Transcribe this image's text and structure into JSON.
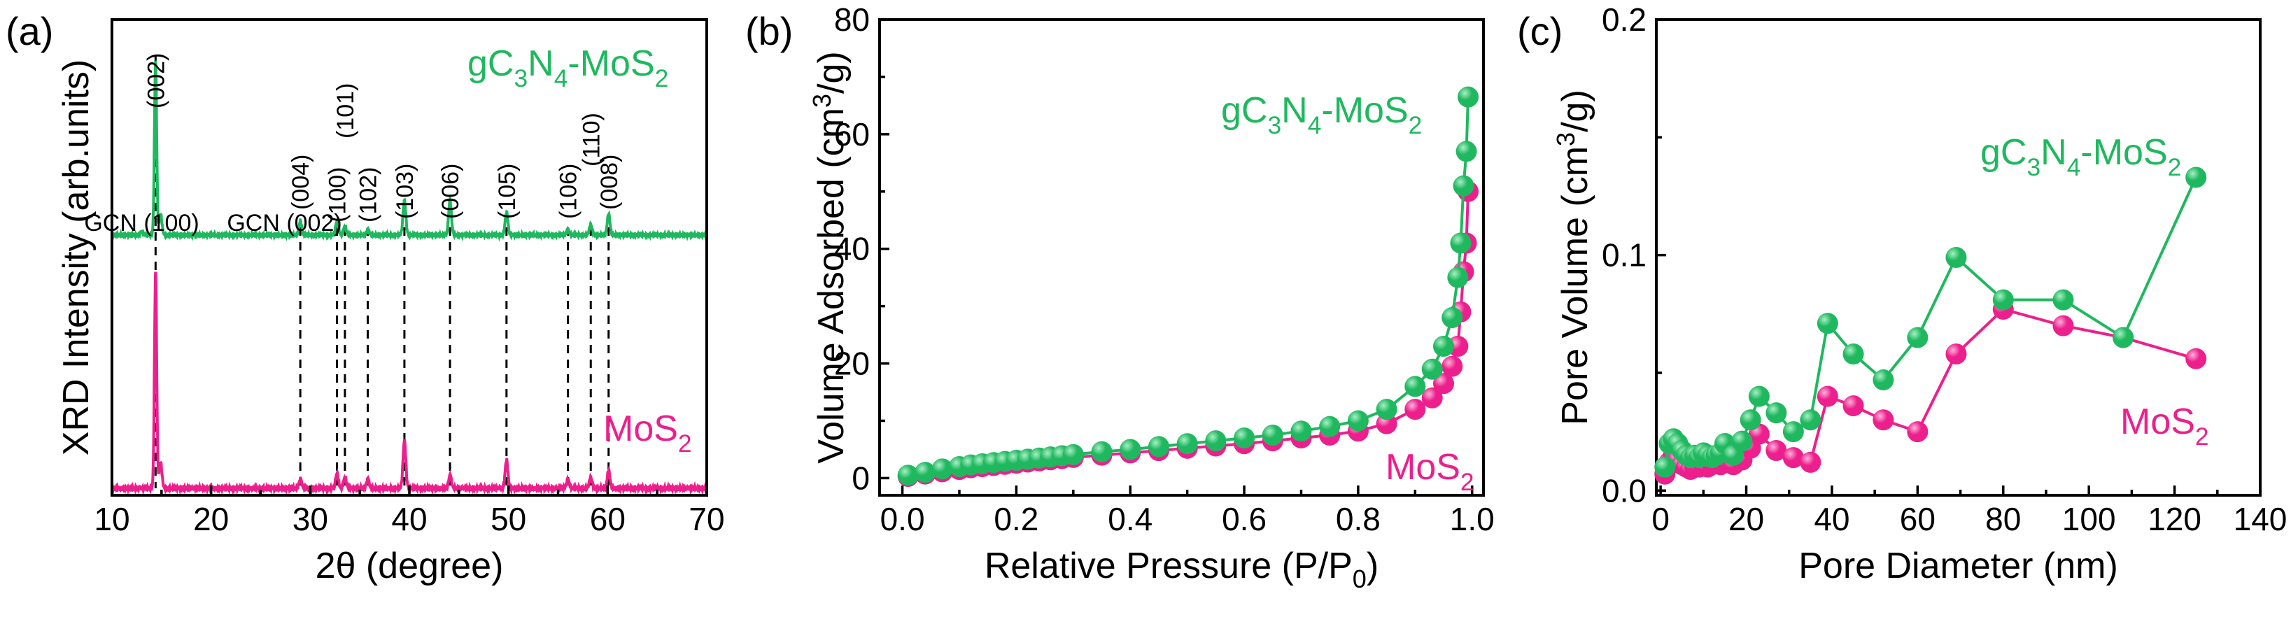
{
  "colors": {
    "green": "#1FB85F",
    "magenta": "#EC1F8C",
    "green_highlight": "#A8EFC4",
    "magenta_highlight": "#FFB3DA"
  },
  "chart_data": [
    {
      "id": "a",
      "type": "line",
      "panel_label": "(a)",
      "xlabel": "2θ (degree)",
      "ylabel": "XRD Intensity (arb.units)",
      "xlim": [
        10,
        70
      ],
      "xticks": [
        10,
        20,
        30,
        40,
        50,
        60,
        70
      ],
      "series": [
        {
          "name": "gC3N4-MoS2",
          "label_main": "gC",
          "label_sub1": "3",
          "label_mid": "N",
          "label_sub2": "4",
          "label_tail": "-MoS",
          "label_sub3": "2",
          "color": "green",
          "peaks": [
            [
              13.0,
              0.02
            ],
            [
              14.4,
              1.0
            ],
            [
              14.9,
              0.12
            ],
            [
              29.0,
              0.08
            ],
            [
              32.7,
              0.08
            ],
            [
              33.5,
              0.05
            ],
            [
              35.8,
              0.03
            ],
            [
              39.5,
              0.2
            ],
            [
              44.1,
              0.2
            ],
            [
              49.8,
              0.13
            ],
            [
              56.0,
              0.03
            ],
            [
              58.3,
              0.06
            ],
            [
              60.1,
              0.12
            ]
          ]
        },
        {
          "name": "MoS2",
          "label_main": "MoS",
          "label_sub1": "2",
          "color": "magenta",
          "peaks": [
            [
              14.4,
              1.0
            ],
            [
              14.9,
              0.12
            ],
            [
              29.0,
              0.04
            ],
            [
              32.7,
              0.07
            ],
            [
              33.5,
              0.05
            ],
            [
              35.8,
              0.04
            ],
            [
              39.5,
              0.22
            ],
            [
              44.1,
              0.06
            ],
            [
              49.8,
              0.13
            ],
            [
              56.0,
              0.04
            ],
            [
              58.3,
              0.05
            ],
            [
              60.1,
              0.08
            ]
          ]
        }
      ],
      "annotations": [
        {
          "text": "GCN (100)",
          "x": 13.0,
          "rotation": 0
        },
        {
          "text": "(002)",
          "x": 14.4,
          "rotation": -90
        },
        {
          "text": "GCN (002)",
          "x": 27.4,
          "rotation": 0
        },
        {
          "text": "(004)",
          "x": 29.0,
          "rotation": -90
        },
        {
          "text": "(100)",
          "x": 32.7,
          "rotation": -90
        },
        {
          "text": "(101)",
          "x": 33.5,
          "rotation": -90
        },
        {
          "text": "(102)",
          "x": 35.8,
          "rotation": -90
        },
        {
          "text": "(103)",
          "x": 39.5,
          "rotation": -90
        },
        {
          "text": "(006)",
          "x": 44.1,
          "rotation": -90
        },
        {
          "text": "(105)",
          "x": 49.8,
          "rotation": -90
        },
        {
          "text": "(106)",
          "x": 56.0,
          "rotation": -90
        },
        {
          "text": "(110)",
          "x": 58.3,
          "rotation": -90
        },
        {
          "text": "(008)",
          "x": 60.1,
          "rotation": -90
        }
      ],
      "reference_lines": [
        14.4,
        29.0,
        32.7,
        33.5,
        35.8,
        39.5,
        44.1,
        49.8,
        56.0,
        58.3,
        60.1
      ]
    },
    {
      "id": "b",
      "type": "line",
      "panel_label": "(b)",
      "xlabel": "Relative Pressure (P/P",
      "xlabel_sub": "0",
      "xlabel_tail": ")",
      "ylabel": "Volume Adsorbed (cm",
      "ylabel_sup": "3",
      "ylabel_tail": "/g)",
      "xlim": [
        -0.04,
        1.02
      ],
      "ylim": [
        -3,
        80
      ],
      "xticks": [
        0.0,
        0.2,
        0.4,
        0.6,
        0.8,
        1.0
      ],
      "yticks": [
        0,
        20,
        40,
        60,
        80
      ],
      "series": [
        {
          "name": "gC3N4-MoS2",
          "label_main": "gC",
          "label_sub1": "3",
          "label_mid": "N",
          "label_sub2": "4",
          "label_tail": "-MoS",
          "label_sub3": "2",
          "color": "green",
          "x": [
            0.01,
            0.04,
            0.07,
            0.1,
            0.12,
            0.14,
            0.16,
            0.18,
            0.2,
            0.22,
            0.24,
            0.26,
            0.28,
            0.3,
            0.35,
            0.4,
            0.45,
            0.5,
            0.55,
            0.6,
            0.65,
            0.7,
            0.75,
            0.8,
            0.85,
            0.9,
            0.93,
            0.95,
            0.965,
            0.975,
            0.98,
            0.985,
            0.99,
            0.993
          ],
          "y": [
            0.5,
            1.0,
            1.6,
            2.0,
            2.3,
            2.5,
            2.7,
            2.9,
            3.1,
            3.3,
            3.5,
            3.7,
            3.9,
            4.1,
            4.6,
            5.0,
            5.5,
            6.0,
            6.5,
            7.0,
            7.5,
            8.2,
            9.0,
            10.0,
            12.0,
            16.0,
            19.0,
            23.0,
            28.0,
            35.0,
            41.0,
            51.0,
            57.0,
            66.5
          ]
        },
        {
          "name": "MoS2",
          "label_main": "MoS",
          "label_sub1": "2",
          "color": "magenta",
          "x": [
            0.01,
            0.04,
            0.07,
            0.1,
            0.12,
            0.14,
            0.16,
            0.18,
            0.2,
            0.22,
            0.24,
            0.26,
            0.28,
            0.3,
            0.35,
            0.4,
            0.45,
            0.5,
            0.55,
            0.6,
            0.65,
            0.7,
            0.75,
            0.8,
            0.85,
            0.9,
            0.93,
            0.95,
            0.965,
            0.975,
            0.98,
            0.985,
            0.99,
            0.993
          ],
          "y": [
            0.3,
            0.7,
            1.1,
            1.5,
            1.8,
            2.0,
            2.2,
            2.4,
            2.6,
            2.8,
            3.0,
            3.2,
            3.4,
            3.6,
            4.0,
            4.4,
            4.8,
            5.2,
            5.6,
            6.0,
            6.5,
            7.0,
            7.5,
            8.2,
            9.5,
            12.0,
            14.0,
            16.5,
            19.5,
            23.0,
            29.0,
            36.0,
            41.0,
            50.0
          ]
        }
      ]
    },
    {
      "id": "c",
      "type": "line",
      "panel_label": "(c)",
      "xlabel": "Pore Diameter (nm)",
      "ylabel": "Pore Volume (cm",
      "ylabel_sup": "3",
      "ylabel_tail": "/g)",
      "xlim": [
        -1,
        140
      ],
      "ylim": [
        -0.002,
        0.2
      ],
      "xticks": [
        0,
        20,
        40,
        60,
        80,
        100,
        120,
        140
      ],
      "yticks": [
        0.0,
        0.1,
        0.2
      ],
      "ytick_labels": [
        "0.0",
        "0.1",
        "0.2"
      ],
      "series": [
        {
          "name": "gC3N4-MoS2",
          "label_main": "gC",
          "label_sub1": "3",
          "label_mid": "N",
          "label_sub2": "4",
          "label_tail": "-MoS",
          "label_sub3": "2",
          "color": "green",
          "x": [
            1,
            2,
            3,
            4,
            5,
            6,
            7,
            8,
            9,
            10,
            11,
            12,
            13,
            14,
            15,
            17,
            19,
            21,
            23,
            27,
            31,
            35,
            39,
            45,
            52,
            60,
            69,
            80,
            94,
            108,
            125
          ],
          "y": [
            0.01,
            0.02,
            0.022,
            0.02,
            0.017,
            0.015,
            0.014,
            0.015,
            0.014,
            0.016,
            0.015,
            0.014,
            0.015,
            0.016,
            0.02,
            0.015,
            0.021,
            0.03,
            0.04,
            0.033,
            0.025,
            0.03,
            0.071,
            0.058,
            0.047,
            0.065,
            0.099,
            0.081,
            0.081,
            0.065,
            0.133
          ]
        },
        {
          "name": "MoS2",
          "label_main": "MoS",
          "label_sub1": "2",
          "color": "magenta",
          "x": [
            1,
            2,
            3,
            4,
            5,
            6,
            7,
            8,
            9,
            10,
            11,
            12,
            13,
            14,
            15,
            17,
            19,
            21,
            23,
            27,
            31,
            35,
            39,
            45,
            52,
            60,
            69,
            80,
            94,
            108,
            125
          ],
          "y": [
            0.007,
            0.012,
            0.015,
            0.013,
            0.011,
            0.01,
            0.009,
            0.01,
            0.01,
            0.011,
            0.01,
            0.011,
            0.012,
            0.011,
            0.012,
            0.011,
            0.013,
            0.018,
            0.024,
            0.017,
            0.014,
            0.012,
            0.04,
            0.036,
            0.03,
            0.025,
            0.058,
            0.077,
            0.07,
            0.065,
            0.056
          ]
        }
      ]
    }
  ]
}
